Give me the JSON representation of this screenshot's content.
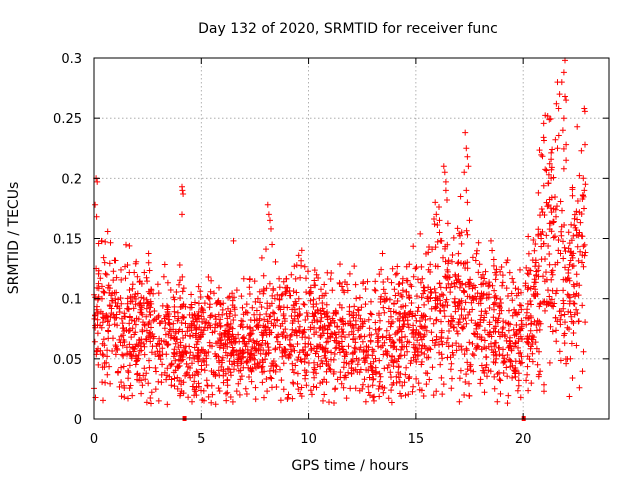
{
  "chart_data": {
    "type": "scatter",
    "title": "Day 132 of 2020, SRMTID for receiver func",
    "xlabel": "GPS time / hours",
    "ylabel": "SRMTID / TECUs",
    "xlim": [
      0,
      24
    ],
    "ylim": [
      0,
      0.3
    ],
    "grid": true,
    "marker": "+",
    "color": "#ff0000",
    "x_ticks": [
      0,
      5,
      10,
      15,
      20
    ],
    "x_tick_labels": [
      "0",
      "5",
      "10",
      "15",
      "20"
    ],
    "y_ticks": [
      0,
      0.05,
      0.1,
      0.15,
      0.2,
      0.25,
      0.3
    ],
    "y_tick_labels": [
      "0",
      "0.05",
      "0.1",
      "0.15",
      "0.2",
      "0.25",
      "0.3"
    ],
    "gaps": [
      [
        4.2,
        4.24
      ],
      [
        19.95,
        20.1
      ]
    ],
    "trend": [
      {
        "x": 0,
        "y": 0.085
      },
      {
        "x": 1,
        "y": 0.08
      },
      {
        "x": 2,
        "y": 0.075
      },
      {
        "x": 3,
        "y": 0.068
      },
      {
        "x": 4,
        "y": 0.065
      },
      {
        "x": 5,
        "y": 0.06
      },
      {
        "x": 6,
        "y": 0.06
      },
      {
        "x": 7,
        "y": 0.062
      },
      {
        "x": 8,
        "y": 0.068
      },
      {
        "x": 9,
        "y": 0.072
      },
      {
        "x": 10,
        "y": 0.072
      },
      {
        "x": 11,
        "y": 0.07
      },
      {
        "x": 12,
        "y": 0.065
      },
      {
        "x": 13,
        "y": 0.063
      },
      {
        "x": 14,
        "y": 0.068
      },
      {
        "x": 15,
        "y": 0.08
      },
      {
        "x": 16,
        "y": 0.09
      },
      {
        "x": 17,
        "y": 0.095
      },
      {
        "x": 18,
        "y": 0.085
      },
      {
        "x": 19,
        "y": 0.075
      },
      {
        "x": 20,
        "y": 0.065
      },
      {
        "x": 20.5,
        "y": 0.095
      },
      {
        "x": 21,
        "y": 0.15
      },
      {
        "x": 21.5,
        "y": 0.14
      },
      {
        "x": 22,
        "y": 0.1
      },
      {
        "x": 22.5,
        "y": 0.13
      },
      {
        "x": 22.9,
        "y": 0.15
      }
    ],
    "points": [
      {
        "x": 0.1,
        "y": 0.2
      },
      {
        "x": 0.15,
        "y": 0.197
      },
      {
        "x": 0.05,
        "y": 0.178
      },
      {
        "x": 0.12,
        "y": 0.168
      },
      {
        "x": 0.35,
        "y": 0.148
      },
      {
        "x": 0.5,
        "y": 0.13
      },
      {
        "x": 0.2,
        "y": 0.045
      },
      {
        "x": 0.4,
        "y": 0.043
      },
      {
        "x": 4.1,
        "y": 0.193
      },
      {
        "x": 4.12,
        "y": 0.19
      },
      {
        "x": 4.15,
        "y": 0.187
      },
      {
        "x": 4.1,
        "y": 0.17
      },
      {
        "x": 4.0,
        "y": 0.128
      },
      {
        "x": 3.6,
        "y": 0.028
      },
      {
        "x": 3.9,
        "y": 0.025
      },
      {
        "x": 4.6,
        "y": 0.027
      },
      {
        "x": 6.5,
        "y": 0.148
      },
      {
        "x": 6.8,
        "y": 0.02
      },
      {
        "x": 8.1,
        "y": 0.178
      },
      {
        "x": 8.15,
        "y": 0.17
      },
      {
        "x": 8.2,
        "y": 0.165
      },
      {
        "x": 8.25,
        "y": 0.158
      },
      {
        "x": 8.3,
        "y": 0.145
      },
      {
        "x": 12.5,
        "y": 0.025
      },
      {
        "x": 12.8,
        "y": 0.022
      },
      {
        "x": 13.0,
        "y": 0.018
      },
      {
        "x": 13.05,
        "y": 0.015
      },
      {
        "x": 14.1,
        "y": 0.03
      },
      {
        "x": 14.7,
        "y": 0.035
      },
      {
        "x": 15.9,
        "y": 0.18
      },
      {
        "x": 15.95,
        "y": 0.17
      },
      {
        "x": 16.1,
        "y": 0.165
      },
      {
        "x": 16.1,
        "y": 0.155
      },
      {
        "x": 16.2,
        "y": 0.148
      },
      {
        "x": 16.3,
        "y": 0.21
      },
      {
        "x": 16.35,
        "y": 0.205
      },
      {
        "x": 16.4,
        "y": 0.197
      },
      {
        "x": 16.4,
        "y": 0.19
      },
      {
        "x": 16.45,
        "y": 0.182
      },
      {
        "x": 17.3,
        "y": 0.238
      },
      {
        "x": 17.35,
        "y": 0.225
      },
      {
        "x": 17.4,
        "y": 0.218
      },
      {
        "x": 17.45,
        "y": 0.21
      },
      {
        "x": 17.25,
        "y": 0.205
      },
      {
        "x": 17.35,
        "y": 0.19
      },
      {
        "x": 17.4,
        "y": 0.18
      },
      {
        "x": 17.5,
        "y": 0.165
      },
      {
        "x": 18.5,
        "y": 0.148
      },
      {
        "x": 18.55,
        "y": 0.14
      },
      {
        "x": 19.6,
        "y": 0.04
      },
      {
        "x": 19.8,
        "y": 0.038
      },
      {
        "x": 21.2,
        "y": 0.203
      },
      {
        "x": 21.3,
        "y": 0.2
      },
      {
        "x": 21.5,
        "y": 0.232
      },
      {
        "x": 21.6,
        "y": 0.225
      },
      {
        "x": 21.6,
        "y": 0.28
      },
      {
        "x": 21.7,
        "y": 0.27
      },
      {
        "x": 21.55,
        "y": 0.262
      },
      {
        "x": 21.65,
        "y": 0.258
      },
      {
        "x": 21.8,
        "y": 0.28
      },
      {
        "x": 21.95,
        "y": 0.298
      },
      {
        "x": 21.9,
        "y": 0.288
      },
      {
        "x": 21.95,
        "y": 0.268
      },
      {
        "x": 22.0,
        "y": 0.265
      },
      {
        "x": 21.9,
        "y": 0.25
      },
      {
        "x": 21.85,
        "y": 0.24
      },
      {
        "x": 22.0,
        "y": 0.228
      },
      {
        "x": 22.0,
        "y": 0.215
      },
      {
        "x": 21.9,
        "y": 0.208
      },
      {
        "x": 22.85,
        "y": 0.258
      },
      {
        "x": 22.88,
        "y": 0.228
      },
      {
        "x": 22.8,
        "y": 0.2
      },
      {
        "x": 22.9,
        "y": 0.195
      },
      {
        "x": 22.85,
        "y": 0.19
      },
      {
        "x": 22.0,
        "y": 0.046
      },
      {
        "x": 22.2,
        "y": 0.05
      }
    ]
  }
}
